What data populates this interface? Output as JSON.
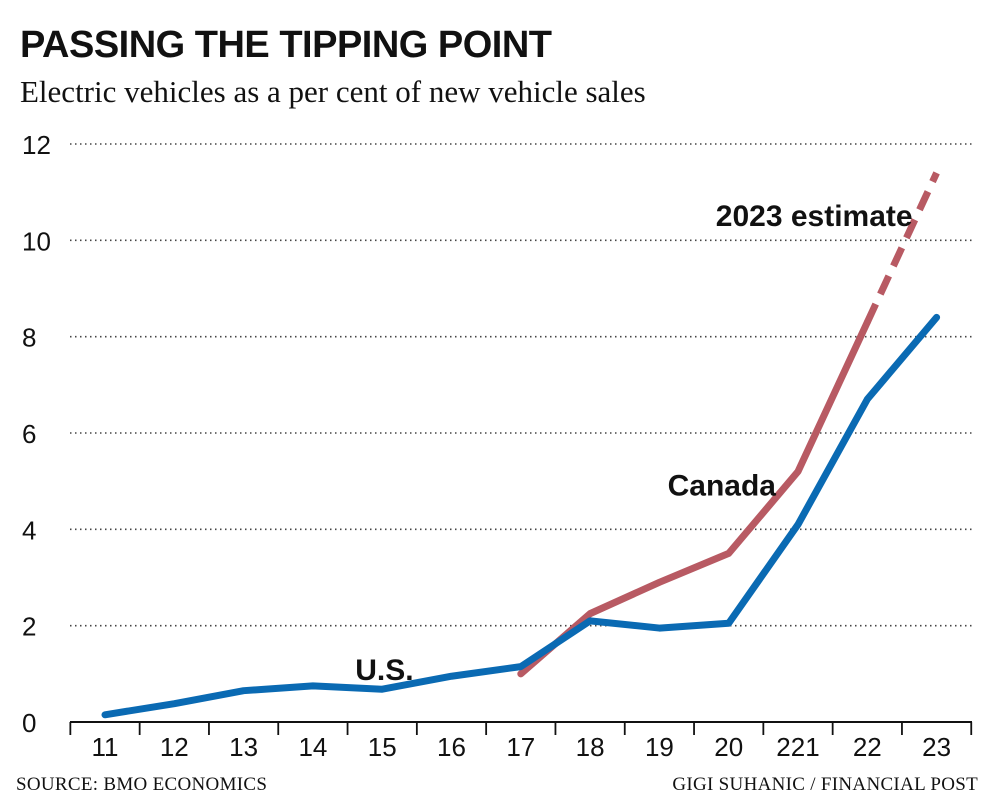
{
  "header": {
    "title": "PASSING THE TIPPING POINT",
    "subtitle": "Electric vehicles as a per cent of new vehicle sales"
  },
  "footer": {
    "source": "SOURCE: BMO ECONOMICS",
    "credit": "GIGI SUHANIC / FINANCIAL POST"
  },
  "colors": {
    "us_line": "#0a6ab3",
    "canada_line": "#b85a63",
    "grid": "#444444",
    "axis": "#111111"
  },
  "chart_data": {
    "type": "line",
    "title": "PASSING THE TIPPING POINT",
    "subtitle": "Electric vehicles as a per cent of new vehicle sales",
    "xlabel": "",
    "ylabel": "",
    "categories": [
      "11",
      "12",
      "13",
      "14",
      "15",
      "16",
      "17",
      "18",
      "19",
      "20",
      "221",
      "22",
      "23"
    ],
    "ylim": [
      0,
      12
    ],
    "yticks": [
      0,
      2,
      4,
      6,
      8,
      10,
      12
    ],
    "grid": "horizontal dotted",
    "series": [
      {
        "name": "U.S.",
        "color": "#0a6ab3",
        "x": [
          "11",
          "12",
          "13",
          "14",
          "15",
          "16",
          "17",
          "18",
          "19",
          "20",
          "221",
          "22",
          "23"
        ],
        "values": [
          0.15,
          0.38,
          0.65,
          0.75,
          0.68,
          0.95,
          1.15,
          2.1,
          1.95,
          2.05,
          4.1,
          6.7,
          8.4
        ]
      },
      {
        "name": "Canada",
        "color": "#b85a63",
        "x": [
          "17",
          "18",
          "19",
          "20",
          "221",
          "22"
        ],
        "values": [
          1.0,
          2.25,
          2.9,
          3.5,
          5.2,
          8.3
        ]
      },
      {
        "name": "2023 estimate",
        "color": "#b85a63",
        "style": "dashed",
        "x": [
          "22",
          "23"
        ],
        "values": [
          8.3,
          11.4
        ]
      }
    ],
    "annotations": [
      "U.S.",
      "Canada",
      "2023 estimate"
    ]
  }
}
